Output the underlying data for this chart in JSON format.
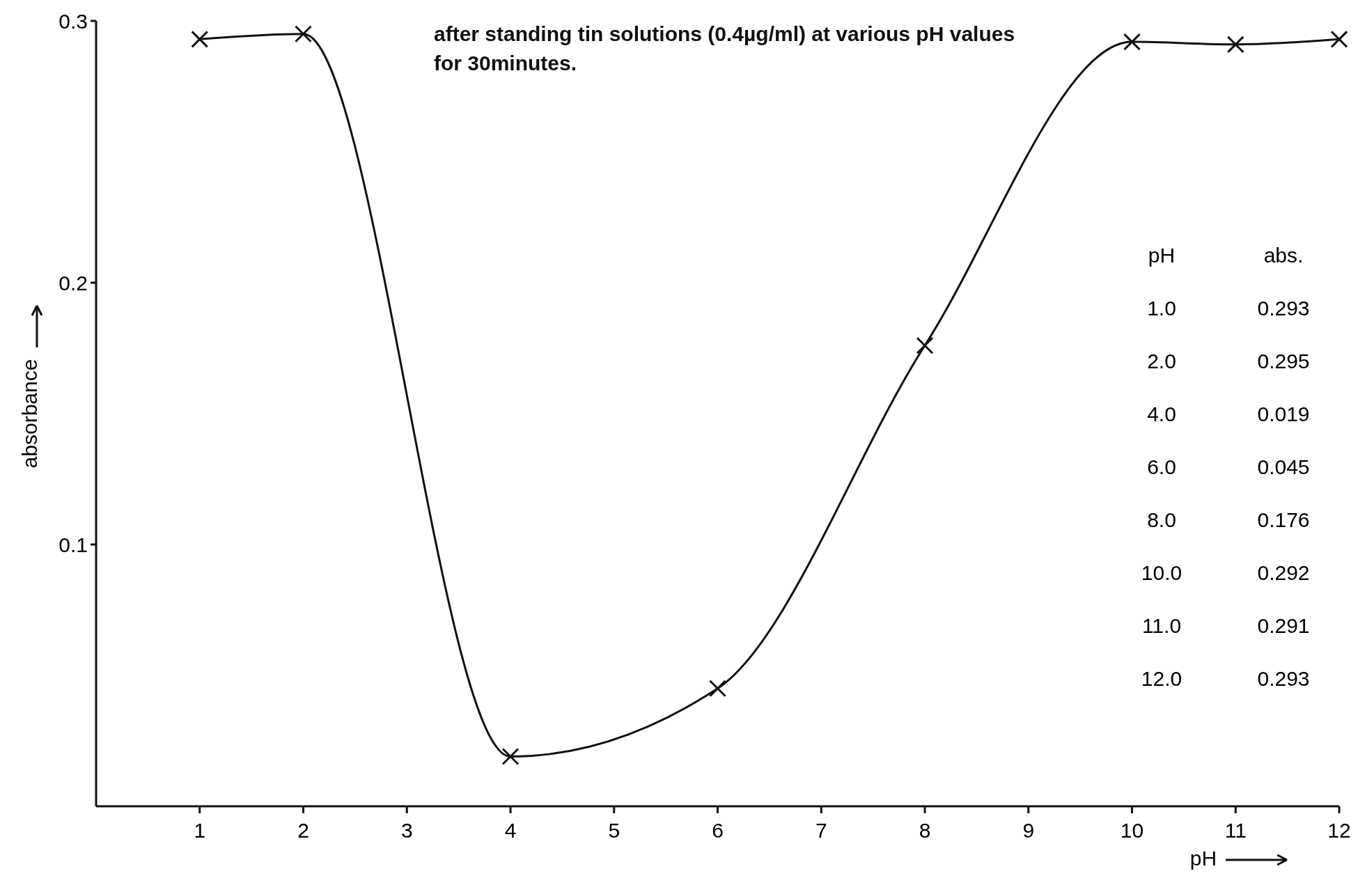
{
  "chart_data": {
    "type": "line",
    "title": "after standing tin solutions (0.4µg/ml) at various pH values for 30minutes.",
    "xlabel": "pH",
    "ylabel": "absorbance",
    "x": [
      1,
      2,
      4,
      6,
      8,
      10,
      11,
      12
    ],
    "values": [
      0.293,
      0.295,
      0.019,
      0.045,
      0.176,
      0.292,
      0.291,
      0.293
    ],
    "color": "#111111",
    "marker": "cross",
    "line_style": "solid",
    "annotations": [
      "pH",
      "abs.",
      "1.0",
      "0.293",
      "2.0",
      "0.295",
      "4.0",
      "0.019",
      "6.0",
      "0.045",
      "8.0",
      "0.176",
      "10.0",
      "0.292",
      "11.0",
      "0.291",
      "12.0",
      "0.293"
    ],
    "xlim": [
      0,
      12
    ],
    "xticks": [
      1,
      2,
      3,
      4,
      5,
      6,
      7,
      8,
      9,
      10,
      11,
      12
    ],
    "ylim": [
      0,
      0.3
    ],
    "yticks": [
      0.1,
      0.2,
      0.3
    ],
    "grid": false
  }
}
